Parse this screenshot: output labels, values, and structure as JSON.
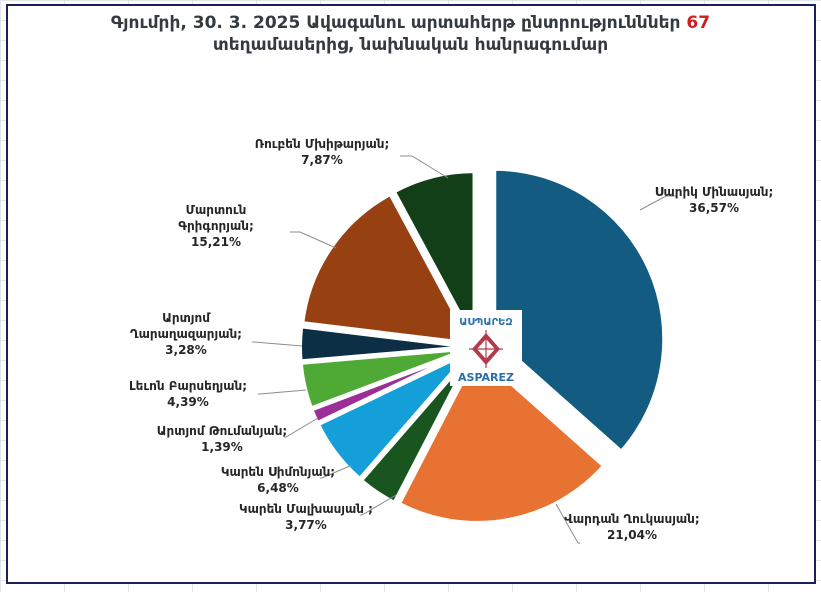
{
  "chart_data": {
    "type": "pie",
    "title_line1": "Գյումրի, 30. 3. 2025 Ավագանու արտահերթ ընտրությունններ",
    "title_highlight": "67",
    "title_line2": "տեղամասերից, նախնական հանրագումար",
    "logo_text_top": "ԱՍՊԱՐԵԶ",
    "logo_text_bottom": "ASPAREZ",
    "slices": [
      {
        "name": "Սարիկ Մինասյան",
        "value": 36.57,
        "value_label": "36,57%",
        "color": "#135b80",
        "exploded": true
      },
      {
        "name": "Վարդան Ղուկասյան",
        "value": 21.04,
        "value_label": "21,04%",
        "color": "#e77232",
        "exploded": false
      },
      {
        "name": "Կարեն Մալխասյան ;",
        "value": 3.77,
        "value_label": "3,77%",
        "color": "#19561f",
        "exploded": false
      },
      {
        "name": "Կարեն Սիմոնյան",
        "value": 6.48,
        "value_label": "6,48%",
        "color": "#159fd9",
        "exploded": false
      },
      {
        "name": "Արտյոմ Թումանյան",
        "value": 1.39,
        "value_label": "1,39%",
        "color": "#9b2e97",
        "exploded": false
      },
      {
        "name": "Լեւոն Բարսեղյան",
        "value": 4.39,
        "value_label": "4,39%",
        "color": "#4ea935",
        "exploded": false
      },
      {
        "name": "Արտյոմ Ղարաղազարյան",
        "value": 3.28,
        "value_label": "3,28%",
        "color": "#0c2f45",
        "exploded": false
      },
      {
        "name": "Մարտուն Գրիգորյան",
        "value": 15.21,
        "value_label": "15,21%",
        "color": "#974012",
        "exploded": false
      },
      {
        "name": "Ռուբեն Մխիթարյան",
        "value": 7.87,
        "value_label": "7,87%",
        "color": "#123f17",
        "exploded": false
      }
    ]
  }
}
